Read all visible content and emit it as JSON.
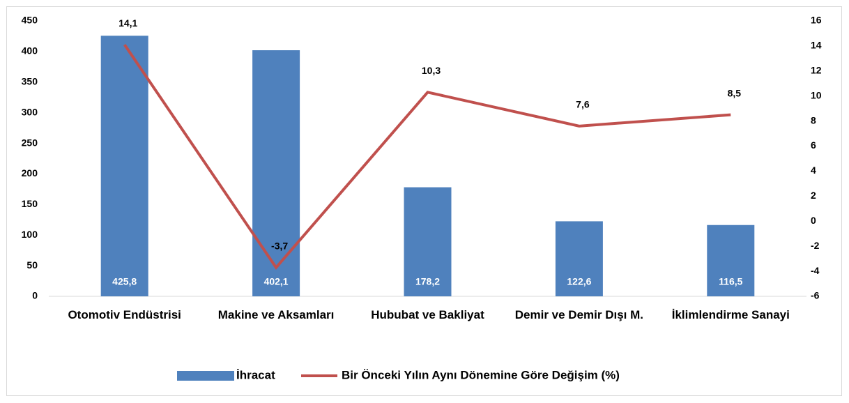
{
  "chart_data": {
    "type": "bar",
    "categories": [
      "Otomotiv Endüstrisi",
      "Makine ve Aksamları",
      "Hububat ve Bakliyat",
      "Demir ve Demir Dışı M.",
      "İklimlendirme Sanayi"
    ],
    "series": [
      {
        "name": "İhracat",
        "type": "bar",
        "color": "#4f81bd",
        "values": [
          425.8,
          402.1,
          178.2,
          122.6,
          116.5
        ],
        "value_labels": [
          "425,8",
          "402,1",
          "178,2",
          "122,6",
          "116,5"
        ]
      },
      {
        "name": "Bir Önceki Yılın Aynı Dönemine Göre Değişim (%)",
        "type": "line",
        "axis": "y2",
        "color": "#c0504d",
        "values": [
          14.1,
          -3.7,
          10.3,
          7.6,
          8.5
        ],
        "value_labels": [
          "14,1",
          "-3,7",
          "10,3",
          "7,6",
          "8,5"
        ]
      }
    ],
    "ylim": [
      0,
      450
    ],
    "yticks": [
      0,
      50,
      100,
      150,
      200,
      250,
      300,
      350,
      400,
      450
    ],
    "y2lim": [
      -6,
      16
    ],
    "y2ticks": [
      -6,
      -4,
      -2,
      0,
      2,
      4,
      6,
      8,
      10,
      12,
      14,
      16
    ],
    "grid": false,
    "legend": "bottom"
  }
}
